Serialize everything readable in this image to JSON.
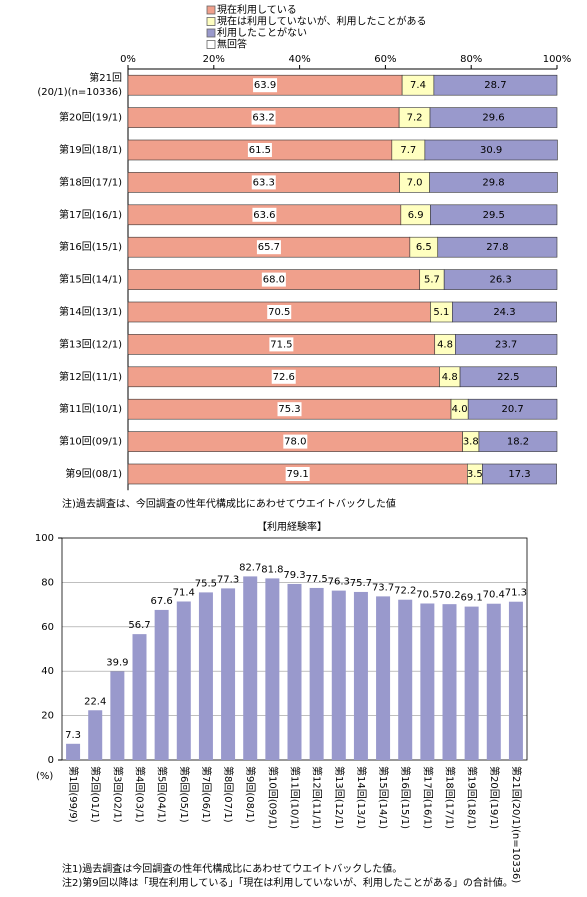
{
  "chart_data": [
    {
      "type": "bar",
      "orientation": "horizontal",
      "stacked": true,
      "categories": [
        [
          "第21回",
          "(20/1)(n=10336)"
        ],
        "第20回(19/1)",
        "第19回(18/1)",
        "第18回(17/1)",
        "第17回(16/1)",
        "第16回(15/1)",
        "第15回(14/1)",
        "第14回(13/1)",
        "第13回(12/1)",
        "第12回(11/1)",
        "第11回(10/1)",
        "第10回(09/1)",
        "第9回(08/1)"
      ],
      "series": [
        {
          "name": "現在利用している",
          "color": "#f0a08c",
          "values": [
            63.9,
            63.2,
            61.5,
            63.3,
            63.6,
            65.7,
            68.0,
            70.5,
            71.5,
            72.6,
            75.3,
            78.0,
            79.1
          ],
          "value_labels": [
            "63.9",
            "63.2",
            "61.5",
            "63.3",
            "63.6",
            "65.7",
            "68.0",
            "70.5",
            "71.5",
            "72.6",
            "75.3",
            "78.0",
            "79.1"
          ]
        },
        {
          "name": "現在は利用していないが、利用したことがある",
          "color": "#ffffc0",
          "values": [
            7.4,
            7.2,
            7.7,
            7.0,
            6.9,
            6.5,
            5.7,
            5.1,
            4.8,
            4.8,
            4.0,
            3.8,
            3.5
          ],
          "value_labels": [
            "7.4",
            "7.2",
            "7.7",
            "7.0",
            "6.9",
            "6.5",
            "5.7",
            "5.1",
            "4.8",
            "4.8",
            "4.0",
            "3.8",
            "3.5"
          ]
        },
        {
          "name": "利用したことがない",
          "color": "#9999cc",
          "values": [
            28.7,
            29.6,
            30.9,
            29.8,
            29.5,
            27.8,
            26.3,
            24.3,
            23.7,
            22.5,
            20.7,
            18.2,
            17.3
          ]
        },
        {
          "name": "無回答",
          "color": "#ffffff",
          "values": [
            0,
            0,
            0,
            0,
            0,
            0,
            0,
            0,
            0,
            0,
            0,
            0,
            0
          ]
        }
      ],
      "xlim": [
        0,
        100
      ],
      "xticks": [
        {
          "value": 0,
          "label": "0%"
        },
        {
          "value": 20,
          "label": "20%"
        },
        {
          "value": 40,
          "label": "40%"
        },
        {
          "value": 60,
          "label": "60%"
        },
        {
          "value": 80,
          "label": "80%"
        },
        {
          "value": 100,
          "label": "100%"
        }
      ],
      "notes": [
        "注)過去調査は、今回調査の性年代構成比にあわせてウエイトバックした値"
      ]
    },
    {
      "type": "bar",
      "orientation": "vertical",
      "title": "【利用経験率】",
      "y_label": "(%)",
      "color": "#9999cc",
      "grid": true,
      "categories": [
        "第1回(99/9)",
        "第2回(01/1)",
        "第3回(02/1)",
        "第4回(03/1)",
        "第5回(04/1)",
        "第6回(05/1)",
        "第7回(06/1)",
        "第8回(07/1)",
        "第9回(08/1)",
        "第10回(09/1)",
        "第11回(10/1)",
        "第12回(11/1)",
        "第13回(12/1)",
        "第14回(13/1)",
        "第15回(14/1)",
        "第16回(15/1)",
        "第17回(16/1)",
        "第18回(17/1)",
        "第19回(18/1)",
        "第20回(19/1)",
        "第21回(20/1)(n=10336)"
      ],
      "values": [
        7.3,
        22.4,
        39.9,
        56.7,
        67.6,
        71.4,
        75.5,
        77.3,
        82.7,
        81.8,
        79.3,
        77.5,
        76.3,
        75.7,
        73.7,
        72.2,
        70.5,
        70.2,
        69.1,
        70.4,
        71.3
      ],
      "ylim": [
        0,
        100
      ],
      "yticks": [
        0,
        20,
        40,
        60,
        80,
        100
      ],
      "notes": [
        "注1)過去調査は今回調査の性年代構成比にあわせてウエイトバックした値。",
        "注2)第9回以降は「現在利用している」「現在は利用していないが、利用したことがある」の合計値。"
      ]
    }
  ]
}
